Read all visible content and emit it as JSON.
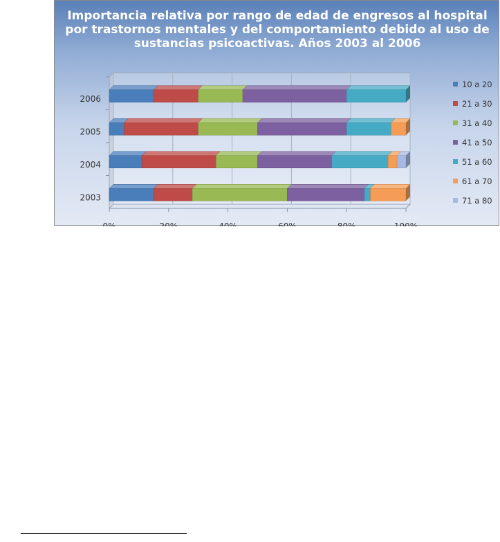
{
  "chart_data": {
    "type": "bar",
    "orientation": "horizontal",
    "stacked": "percent",
    "style": "3d",
    "title_lines": [
      "Importancia relativa por rango de edad de engresos al hospital",
      "por trastornos mentales y del comportamiento debido al uso de",
      "sustancias psicoactivas. Años 2003 al 2006"
    ],
    "categories": [
      "2006",
      "2005",
      "2004",
      "2003"
    ],
    "x_ticks": [
      "0%",
      "20%",
      "40%",
      "60%",
      "80%",
      "100%"
    ],
    "xlim": [
      0,
      100
    ],
    "legend_position": "right",
    "series": [
      {
        "name": "10 a 20",
        "color": "#4a7ebb",
        "values": [
          15,
          5,
          11,
          15
        ]
      },
      {
        "name": "21 a 30",
        "color": "#be4b48",
        "values": [
          15,
          25,
          25,
          13
        ]
      },
      {
        "name": "31 a 40",
        "color": "#98b954",
        "values": [
          15,
          20,
          14,
          32
        ]
      },
      {
        "name": "41 a 50",
        "color": "#7d60a0",
        "values": [
          35,
          30,
          25,
          26
        ]
      },
      {
        "name": "51 a 60",
        "color": "#46aac5",
        "values": [
          20,
          15,
          19,
          2
        ]
      },
      {
        "name": "61 a 70",
        "color": "#f59d56",
        "values": [
          0,
          5,
          3,
          12
        ]
      },
      {
        "name": "71 a 80",
        "color": "#a7b9e3",
        "values": [
          0,
          0,
          3,
          0
        ]
      }
    ]
  }
}
